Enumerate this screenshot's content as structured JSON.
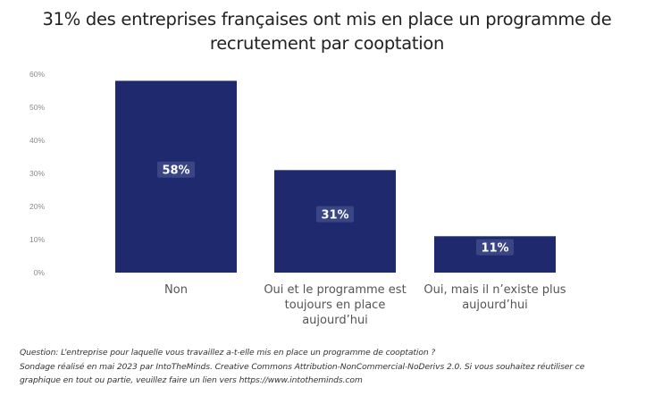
{
  "chart_data": {
    "type": "bar",
    "title": "31% des entreprises françaises ont mis en place un programme de recrutement par cooptation",
    "title_lines": [
      "31% des entreprises françaises ont mis en place un programme de",
      "recrutement par cooptation"
    ],
    "categories": [
      "Non",
      "Oui et le programme est toujours en place aujourd’hui",
      "Oui, mais il n’existe plus aujourd’hui"
    ],
    "category_lines": [
      [
        "Non"
      ],
      [
        "Oui et le programme est",
        "toujours en place",
        "aujourd’hui"
      ],
      [
        "Oui, mais il n’existe plus",
        "aujourd’hui"
      ]
    ],
    "values": [
      58,
      31,
      11
    ],
    "data_labels": [
      "58%",
      "31%",
      "11%"
    ],
    "unit": "%",
    "xlabel": "",
    "ylabel": "",
    "ylim": [
      0,
      60
    ],
    "yticks": [
      0,
      10,
      20,
      30,
      40,
      50,
      60
    ],
    "ytick_labels": [
      "0%",
      "10%",
      "20%",
      "30%",
      "40%",
      "50%",
      "60%"
    ],
    "grid": false,
    "legend": "none",
    "bar_color": "#1f2a6e",
    "label_bg_color": "#3a4584"
  },
  "footer": {
    "question": "Question: L’entreprise pour laquelle vous travaillez a-t-elle mis en place un programme de cooptation ?",
    "source_line1": "Sondage réalisé en mai 2023 par IntoTheMinds. Creative Commons Attribution-NonCommercial-NoDerivs 2.0. Si vous souhaitez réutiliser ce",
    "source_line2": "graphique en tout ou partie, veuillez faire un lien vers https://www.intotheminds.com"
  }
}
